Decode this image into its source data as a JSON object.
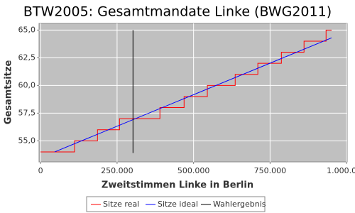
{
  "chart_data": {
    "type": "line",
    "title": "BTW2005: Gesamtmandate Linke (BWG2011)",
    "x_label": "Zweitstimmen Linke in Berlin",
    "y_label": "Gesamtsitze",
    "xlim": [
      -5000,
      1002000
    ],
    "ylim": [
      53.1,
      65.6
    ],
    "xticks": [
      0,
      {
        "value": 250000,
        "label": "250.000"
      },
      {
        "value": 500000,
        "label": "500.000"
      },
      {
        "value": 750000,
        "label": "750.000"
      },
      {
        "value": 1000000,
        "label": "1.000.000"
      }
    ],
    "yticks": [
      {
        "value": 55,
        "label": "55,0"
      },
      {
        "value": 57.5,
        "label": "57,5"
      },
      {
        "value": 60,
        "label": "60,0"
      },
      {
        "value": 62.5,
        "label": "62,5"
      },
      {
        "value": 65,
        "label": "65,0"
      }
    ],
    "grid": true,
    "legend": "bottom",
    "series": [
      {
        "name": "Sitze real",
        "color": "#ff0000",
        "x": [
          0,
          111000,
          111000,
          186000,
          186000,
          258000,
          258000,
          390000,
          390000,
          469000,
          469000,
          545000,
          545000,
          636000,
          636000,
          710000,
          710000,
          787000,
          787000,
          861000,
          861000,
          933000,
          933000,
          951000
        ],
        "values": [
          54,
          54,
          55,
          55,
          56,
          56,
          57,
          57,
          58,
          58,
          59,
          59,
          60,
          60,
          61,
          61,
          62,
          62,
          63,
          63,
          64,
          64,
          65,
          65
        ]
      },
      {
        "name": "Sitze ideal",
        "color": "#0000ff",
        "x": [
          46000,
          951000
        ],
        "values": [
          54,
          64.3
        ]
      },
      {
        "name": "Wahlergebnis",
        "color": "#000000",
        "x": [
          302000,
          302000
        ],
        "values": [
          53.9,
          65
        ]
      }
    ]
  }
}
